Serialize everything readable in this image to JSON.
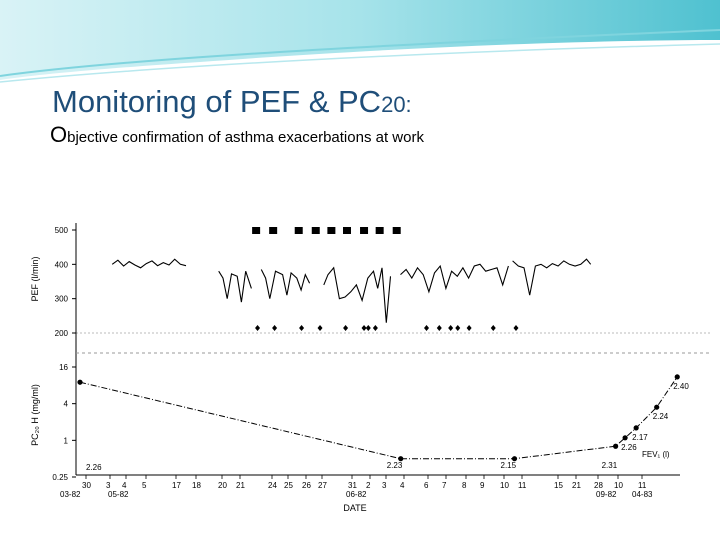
{
  "slide": {
    "title_main": "Monitoring of PEF & PC",
    "title_sub": "20:",
    "subtitle_first": "O",
    "subtitle_rest": "bjective confirmation of asthma exacerbations at work",
    "colors": {
      "title": "#1f4e79",
      "banner": "#5bc8d6"
    }
  },
  "chart_data": [
    {
      "type": "line",
      "panel": "top",
      "ylabel": "PEF (l/min)",
      "yticks": [
        "500",
        "400",
        "300",
        "200"
      ],
      "ylim": [
        200,
        500
      ],
      "x_day_index_range": [
        0,
        34
      ],
      "segments": [
        [
          [
            1,
            400
          ],
          [
            1.4,
            412
          ],
          [
            1.8,
            395
          ],
          [
            2.2,
            408
          ],
          [
            2.6,
            398
          ],
          [
            3,
            390
          ],
          [
            3.4,
            402
          ],
          [
            3.8,
            410
          ],
          [
            4.2,
            396
          ],
          [
            4.6,
            405
          ],
          [
            5,
            398
          ],
          [
            5.4,
            415
          ],
          [
            5.8,
            400
          ],
          [
            6.2,
            396
          ]
        ],
        [
          [
            8.5,
            380
          ],
          [
            8.8,
            360
          ],
          [
            9.1,
            300
          ],
          [
            9.4,
            372
          ],
          [
            9.8,
            365
          ],
          [
            10.1,
            290
          ],
          [
            10.4,
            380
          ],
          [
            10.8,
            330
          ]
        ],
        [
          [
            11.5,
            385
          ],
          [
            11.8,
            360
          ],
          [
            12.1,
            300
          ],
          [
            12.5,
            380
          ],
          [
            13,
            370
          ],
          [
            13.3,
            310
          ],
          [
            13.6,
            375
          ],
          [
            14,
            360
          ],
          [
            14.3,
            325
          ],
          [
            14.6,
            370
          ],
          [
            14.9,
            345
          ]
        ],
        [
          [
            15.9,
            340
          ],
          [
            16.2,
            370
          ],
          [
            16.6,
            390
          ],
          [
            17,
            300
          ],
          [
            17.4,
            305
          ],
          [
            17.8,
            320
          ],
          [
            18.2,
            340
          ],
          [
            18.6,
            295
          ],
          [
            19,
            360
          ],
          [
            19.4,
            380
          ],
          [
            19.7,
            330
          ],
          [
            20,
            390
          ],
          [
            20.3,
            230
          ],
          [
            20.6,
            365
          ]
        ],
        [
          [
            21.3,
            370
          ],
          [
            21.7,
            385
          ],
          [
            22.1,
            360
          ],
          [
            22.5,
            390
          ],
          [
            22.9,
            370
          ],
          [
            23.3,
            320
          ],
          [
            23.7,
            375
          ],
          [
            24.1,
            395
          ],
          [
            24.5,
            330
          ],
          [
            24.9,
            380
          ],
          [
            25.3,
            365
          ],
          [
            25.7,
            390
          ],
          [
            26.1,
            360
          ],
          [
            26.5,
            395
          ],
          [
            26.9,
            400
          ],
          [
            27.3,
            380
          ],
          [
            27.7,
            385
          ],
          [
            28.1,
            390
          ],
          [
            28.5,
            340
          ],
          [
            28.9,
            395
          ]
        ],
        [
          [
            29.2,
            410
          ],
          [
            29.6,
            395
          ],
          [
            30,
            390
          ],
          [
            30.4,
            310
          ],
          [
            30.8,
            395
          ],
          [
            31.2,
            400
          ],
          [
            31.6,
            390
          ],
          [
            32,
            402
          ],
          [
            32.4,
            395
          ],
          [
            32.8,
            410
          ],
          [
            33.2,
            400
          ],
          [
            33.6,
            395
          ],
          [
            34,
            400
          ],
          [
            34.4,
            415
          ],
          [
            34.7,
            400
          ]
        ]
      ],
      "square_marker_days": [
        8.6,
        9.8,
        11.6,
        12.8,
        13.9,
        15.0,
        16.2,
        17.3,
        18.5
      ],
      "diamond_marker_days": [
        8.7,
        9.9,
        11.8,
        13.1,
        14.9,
        16.2,
        16.5,
        17.0,
        20.6,
        21.5,
        22.3,
        22.8,
        23.6,
        25.3,
        26.9
      ]
    },
    {
      "type": "line",
      "panel": "bottom",
      "ylabel": "PC₂₀ H (mg/ml)",
      "yticks": [
        "16",
        "4",
        "1",
        "0.25"
      ],
      "ylim": [
        0.25,
        16
      ],
      "log_scale": true,
      "points": [
        {
          "day": 0,
          "value": 9,
          "label": "2.26"
        },
        {
          "day": 20.3,
          "value": 0.5,
          "label": "2.23"
        },
        {
          "day": 27.5,
          "value": 0.5,
          "label": "2.15"
        },
        {
          "day": 33.9,
          "value": 0.8,
          "label": "2.31"
        },
        {
          "day": 34.5,
          "value": 1.1,
          "label": "2.26"
        },
        {
          "day": 35.2,
          "value": 1.6,
          "label": "2.17"
        },
        {
          "day": 36.5,
          "value": 3.5,
          "label": "2.24"
        },
        {
          "day": 37.8,
          "value": 11,
          "label": "2.40"
        }
      ],
      "fev_label": "FEV₁ (l)",
      "xlabel": "DATE",
      "x_tick_labels": [
        "30",
        "3",
        "4",
        "5",
        "17",
        "18",
        "20",
        "21",
        "24",
        "25",
        "26",
        "27",
        "31",
        "2",
        "3",
        "4",
        "6",
        "7",
        "8",
        "9",
        "10",
        "11",
        "15",
        "21",
        "28",
        "10",
        "11"
      ],
      "x_group_labels": [
        "03-82",
        "05-82",
        "06-82",
        "09-82",
        "04-83"
      ]
    }
  ]
}
